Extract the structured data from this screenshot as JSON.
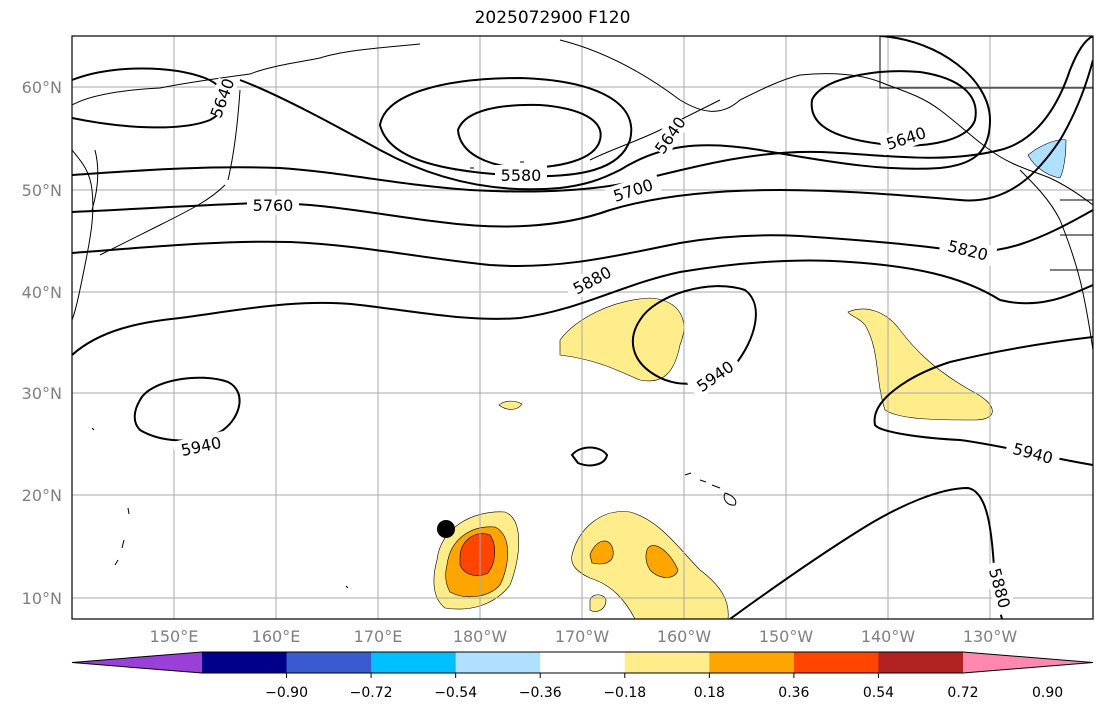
{
  "title": "2025072900 F120",
  "map": {
    "lat_labels": [
      "60°N",
      "50°N",
      "40°N",
      "30°N",
      "20°N",
      "10°N"
    ],
    "lon_labels": [
      "150°E",
      "160°E",
      "170°E",
      "180°W",
      "170°W",
      "160°W",
      "150°W",
      "140°W",
      "130°W"
    ],
    "contour_labels": [
      "5640",
      "5640",
      "5640",
      "5580",
      "5700",
      "5760",
      "5820",
      "5880",
      "5940",
      "5940",
      "5940",
      "5880"
    ],
    "marker": "filled black circle",
    "grid": true
  },
  "colorbar": {
    "ticks": [
      "−0.90",
      "−0.72",
      "−0.54",
      "−0.36",
      "−0.18",
      "0.18",
      "0.36",
      "0.54",
      "0.72",
      "0.90"
    ],
    "colors": [
      "#9b3fd9",
      "#00008b",
      "#3a5bd0",
      "#00bfff",
      "#b0e0ff",
      "#ffffff",
      "#ffec8b",
      "#ffa500",
      "#ff4500",
      "#b22222",
      "#ff88b0"
    ]
  }
}
